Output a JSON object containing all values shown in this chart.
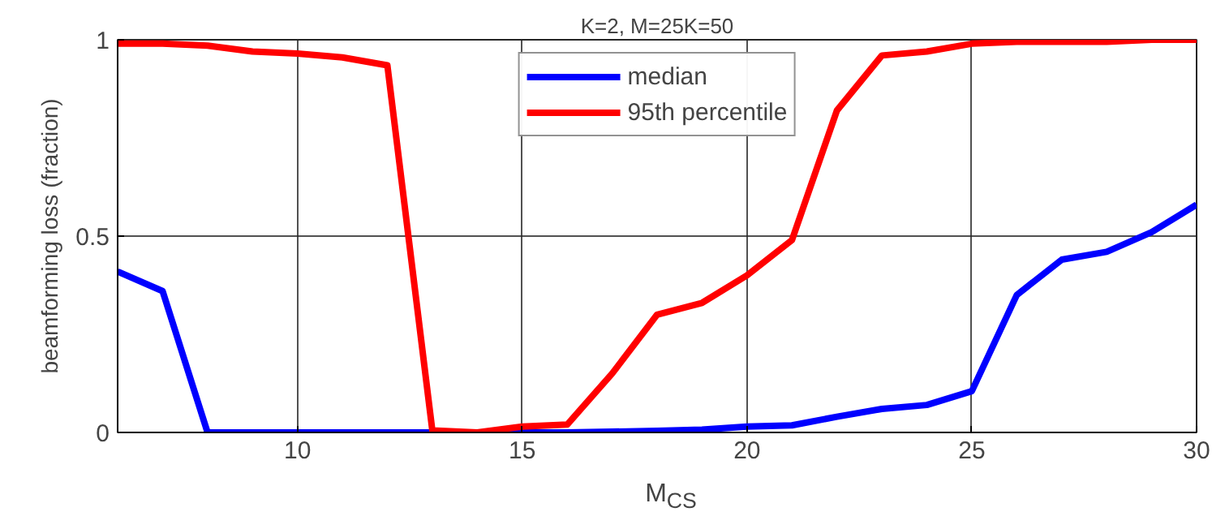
{
  "chart_data": {
    "type": "line",
    "title": "K=2, M=25K=50",
    "xlabel": "M$_{CS}$",
    "ylabel": "beamforming loss (fraction)",
    "x": [
      6,
      7,
      8,
      9,
      10,
      11,
      12,
      13,
      14,
      15,
      16,
      17,
      18,
      19,
      20,
      21,
      22,
      23,
      24,
      25,
      26,
      27,
      28,
      29,
      30
    ],
    "series": [
      {
        "name": "median",
        "color": "#0000ff",
        "values": [
          0.41,
          0.36,
          0,
          0,
          0,
          0,
          0,
          0,
          0,
          0,
          0,
          0.002,
          0.004,
          0.007,
          0.015,
          0.018,
          0.04,
          0.06,
          0.07,
          0.105,
          0.35,
          0.44,
          0.46,
          0.51,
          0.58
        ]
      },
      {
        "name": "95th percentile",
        "color": "#ff0000",
        "values": [
          0.99,
          0.99,
          0.985,
          0.97,
          0.965,
          0.955,
          0.935,
          0.005,
          0,
          0.015,
          0.02,
          0.15,
          0.3,
          0.33,
          0.4,
          0.49,
          0.82,
          0.96,
          0.97,
          0.99,
          0.995,
          0.995,
          0.995,
          1,
          1
        ]
      }
    ],
    "xlim": [
      6,
      30
    ],
    "ylim": [
      0,
      1
    ],
    "xticks": [
      10,
      15,
      20,
      25,
      30
    ],
    "yticks": [
      0,
      0.5,
      1
    ],
    "grid": true,
    "legend": "top",
    "marker": "none",
    "line_style": "solid"
  }
}
